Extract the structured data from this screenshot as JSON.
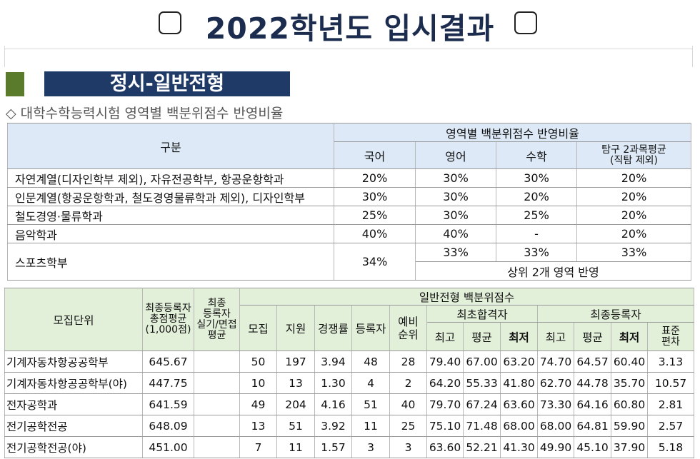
{
  "header": {
    "title": "2022학년도 입시결과",
    "section": "정시-일반전형",
    "subtitle": "◇ 대학수학능력시험 영역별 백분위점수 반영비율"
  },
  "ratio_table": {
    "head_group": "구분",
    "head_span": "영역별 백분위점수 반영비율",
    "head_cols": [
      "국어",
      "영어",
      "수학",
      "탐구 2과목평균\n(직탐 제외)"
    ],
    "rows": [
      {
        "label": "자연계열(디자인학부 제외), 자유전공학부, 항공운항학과",
        "values": [
          "20%",
          "30%",
          "30%",
          "20%"
        ]
      },
      {
        "label": "인문계열(항공운항학과, 철도경영물류학과 제외), 디자인학부",
        "values": [
          "30%",
          "30%",
          "20%",
          "20%"
        ]
      },
      {
        "label": "철도경영·물류학과",
        "values": [
          "25%",
          "30%",
          "25%",
          "20%"
        ]
      },
      {
        "label": "음악학과",
        "values": [
          "40%",
          "40%",
          "-",
          "20%"
        ]
      }
    ],
    "sports": {
      "label": "스포츠학부",
      "korean": "34%",
      "english": "33%",
      "math": "33%",
      "inquiry": "33%",
      "note": "상위 2개 영역 반영"
    }
  },
  "result_table": {
    "h_unit": "모집단위",
    "h_avg_total": "최종등록자\n총점평균\n(1,000점)",
    "h_avg_practical": "최종\n등록자\n실기/면접\n평균",
    "h_group": "일반전형 백분위점수",
    "h_recruit": "모집",
    "h_apply": "지원",
    "h_ratio": "경쟁률",
    "h_registered": "등록자",
    "h_reserve": "예비\n순위",
    "h_first": "최초합격자",
    "h_final": "최종등록자",
    "h_max": "최고",
    "h_avg": "평균",
    "h_min": "최저",
    "h_max2": "최고",
    "h_avg2": "평균",
    "h_min2": "최저",
    "h_std": "표준\n편차",
    "rows": [
      {
        "unit": "기계자동차항공공학부",
        "total": "645.67",
        "prac": "",
        "recruit": "50",
        "apply": "197",
        "ratio": "3.94",
        "reg": "48",
        "reserve": "28",
        "f_max": "79.40",
        "f_avg": "67.00",
        "f_min": "63.20",
        "l_max": "74.70",
        "l_avg": "64.57",
        "l_min": "60.40",
        "std": "3.13"
      },
      {
        "unit": "기계자동차항공공학부(야)",
        "total": "447.75",
        "prac": "",
        "recruit": "10",
        "apply": "13",
        "ratio": "1.30",
        "reg": "4",
        "reserve": "2",
        "f_max": "64.20",
        "f_avg": "55.33",
        "f_min": "41.80",
        "l_max": "62.70",
        "l_avg": "44.78",
        "l_min": "35.70",
        "std": "10.57"
      },
      {
        "unit": "전자공학과",
        "total": "641.59",
        "prac": "",
        "recruit": "49",
        "apply": "204",
        "ratio": "4.16",
        "reg": "51",
        "reserve": "40",
        "f_max": "79.70",
        "f_avg": "67.24",
        "f_min": "63.60",
        "l_max": "73.30",
        "l_avg": "64.16",
        "l_min": "60.80",
        "std": "2.81"
      },
      {
        "unit": "전기공학전공",
        "total": "648.09",
        "prac": "",
        "recruit": "13",
        "apply": "51",
        "ratio": "3.92",
        "reg": "11",
        "reserve": "25",
        "f_max": "75.10",
        "f_avg": "71.48",
        "f_min": "68.00",
        "l_max": "68.00",
        "l_avg": "64.81",
        "l_min": "59.90",
        "std": "2.57"
      },
      {
        "unit": "전기공학전공(야)",
        "total": "451.00",
        "prac": "",
        "recruit": "7",
        "apply": "11",
        "ratio": "1.57",
        "reg": "3",
        "reserve": "3",
        "f_max": "63.60",
        "f_avg": "52.21",
        "f_min": "41.30",
        "l_max": "49.90",
        "l_avg": "45.10",
        "l_min": "37.90",
        "std": "5.18"
      }
    ]
  },
  "colors": {
    "title": "#1c2c4e",
    "section_bar": "#1f3a66",
    "green_block": "#5a7a2c",
    "ratio_header": "#dde9f6",
    "result_header": "#e2efd9"
  }
}
